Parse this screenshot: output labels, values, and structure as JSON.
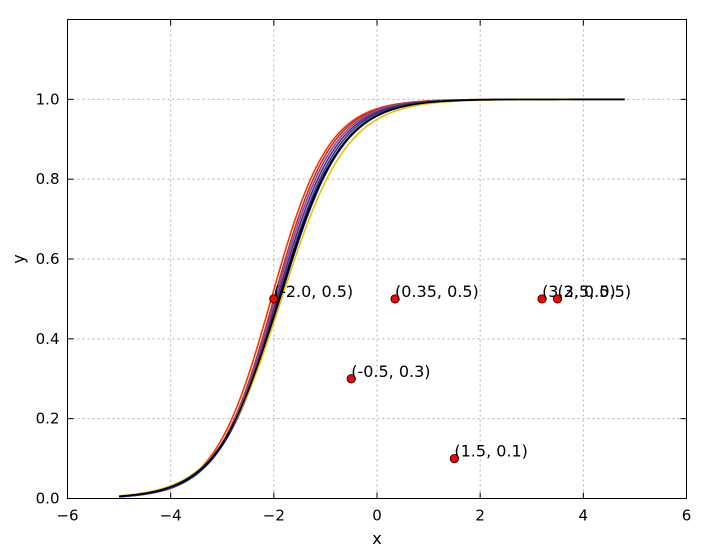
{
  "chart_data": {
    "type": "line",
    "title": "",
    "xlabel": "x",
    "ylabel": "y",
    "xlim": [
      -6,
      6
    ],
    "ylim": [
      0,
      1.2
    ],
    "grid": true,
    "xticks": [
      -6,
      -4,
      -2,
      0,
      2,
      4,
      6
    ],
    "xtick_labels": [
      "−6",
      "−4",
      "−2",
      "0",
      "2",
      "4",
      "6"
    ],
    "yticks": [
      0.0,
      0.2,
      0.4,
      0.6,
      0.8,
      1.0
    ],
    "ytick_labels": [
      "0.0",
      "0.2",
      "0.4",
      "0.6",
      "0.8",
      "1.0"
    ],
    "curve_x_range": [
      -5.0,
      4.8
    ],
    "series": [
      {
        "color": "#ff3300",
        "center": -2.05,
        "scale": 0.55
      },
      {
        "color": "#b03a2e",
        "center": -2.0,
        "scale": 0.55
      },
      {
        "color": "#8e44ad",
        "center": -1.97,
        "scale": 0.56
      },
      {
        "color": "#5b2c6f",
        "center": -1.94,
        "scale": 0.57
      },
      {
        "color": "#1f3a93",
        "center": -1.91,
        "scale": 0.58
      },
      {
        "color": "#00008b",
        "center": -1.88,
        "scale": 0.6
      },
      {
        "color": "#e6c200",
        "center": -1.85,
        "scale": 0.63
      },
      {
        "color": "#000000",
        "center": -1.9,
        "scale": 0.6
      }
    ],
    "points": [
      {
        "x": -2.0,
        "y": 0.5,
        "label": "(-2.0, 0.5)"
      },
      {
        "x": 0.35,
        "y": 0.5,
        "label": "(0.35, 0.5)"
      },
      {
        "x": 3.2,
        "y": 0.5,
        "label": "(3.2, 0.5)"
      },
      {
        "x": 3.5,
        "y": 0.5,
        "label": "(3.5, 0.5)"
      },
      {
        "x": -0.5,
        "y": 0.3,
        "label": "(-0.5, 0.3)"
      },
      {
        "x": 1.5,
        "y": 0.1,
        "label": "(1.5, 0.1)"
      }
    ],
    "point_color": "#ff0000"
  }
}
